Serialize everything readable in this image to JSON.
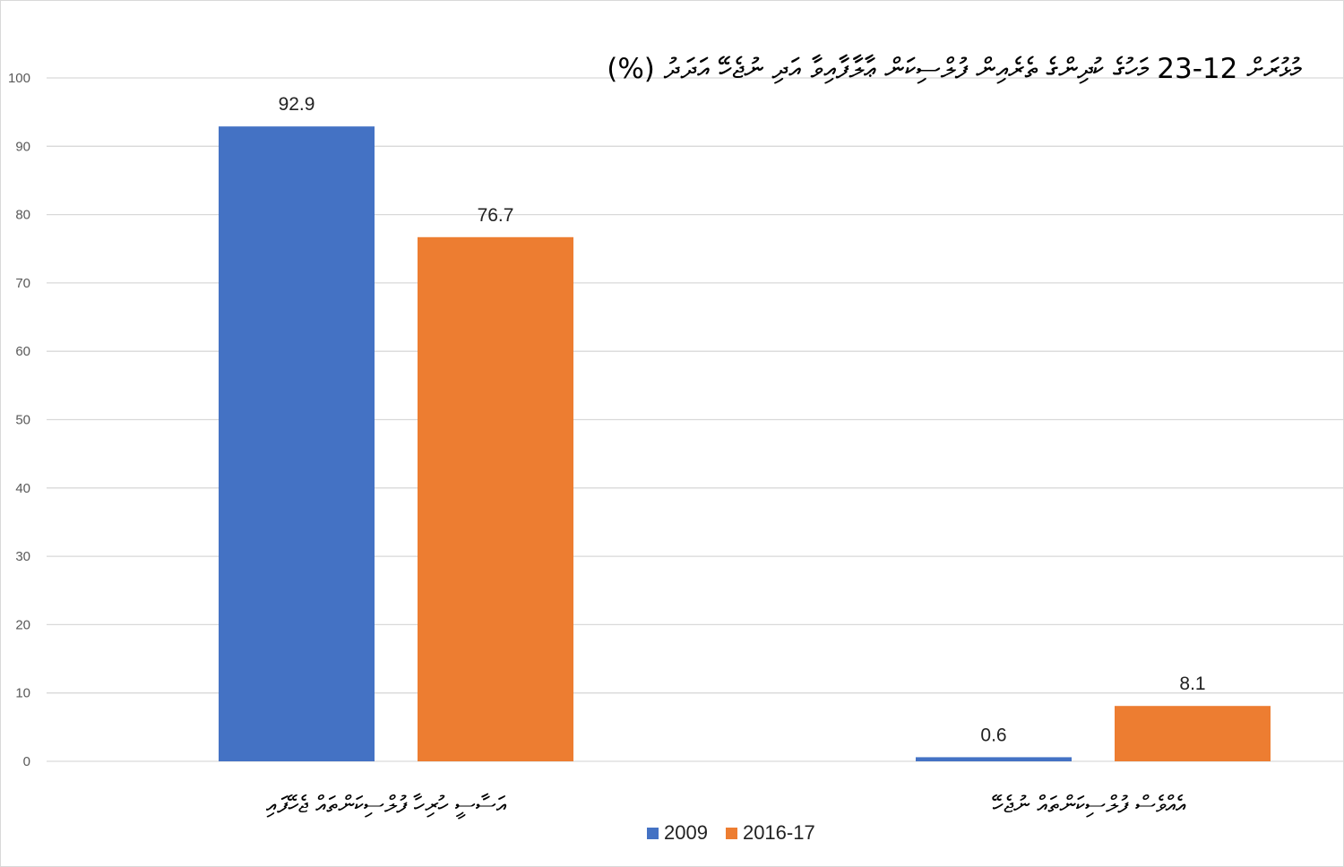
{
  "chart_data": {
    "type": "bar",
    "title": "މުޅުރަށް 12-23 މަހުގެ ކުދިންގެ ތެރެއިން ފުލްސިކަން ޢާލާފާއިވާ އަދި ނުޖެހޭ އަދަދު (%)",
    "categories": [
      "އަސާސީ ހުރިހާ ފުލްސިކަންތައް ޖެހޭފައި",
      "އެއްވެސް ފުލްސިކަންތައް ނުޖެހޭ"
    ],
    "series": [
      {
        "name": "2009",
        "color": "#4472C4",
        "values": [
          92.9,
          0.6
        ]
      },
      {
        "name": "2016-17",
        "color": "#ED7D31",
        "values": [
          76.7,
          8.1
        ]
      }
    ],
    "data_labels": [
      [
        "92.9",
        "76.7"
      ],
      [
        "0.6",
        "8.1"
      ]
    ],
    "ylim": [
      0,
      100
    ],
    "yticks": [
      0,
      10,
      20,
      30,
      40,
      50,
      60,
      70,
      80,
      90,
      100
    ],
    "xlabel": "",
    "ylabel": "",
    "grid": true,
    "legend_position": "bottom"
  }
}
